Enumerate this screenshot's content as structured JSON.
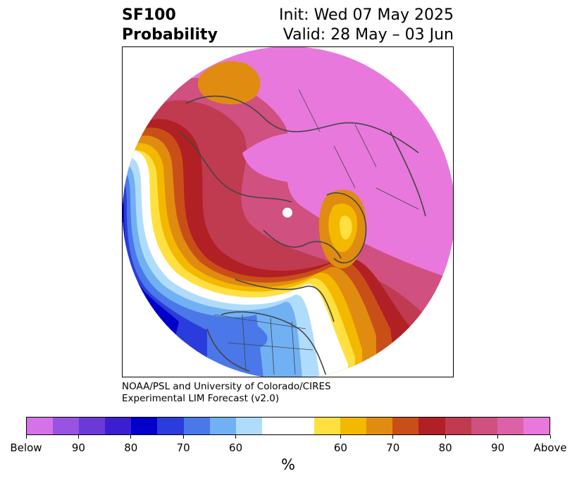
{
  "header": {
    "variable": "SF100",
    "quantity": "Probability",
    "init": "Init: Wed 07 May 2025",
    "valid": "Valid: 28 May – 03 Jun"
  },
  "credit": {
    "line1": "NOAA/PSL and University of Colorado/CIRES",
    "line2": "Experimental LIM Forecast (v2.0)"
  },
  "colorbar": {
    "colors": [
      "#d672e8",
      "#9a52e0",
      "#6a3ad8",
      "#3a1ed0",
      "#0000c8",
      "#2a3cdc",
      "#4a78e8",
      "#72b0f4",
      "#b0dcfc",
      "#ffffff",
      "#ffffff",
      "#ffe040",
      "#f4b800",
      "#e08c10",
      "#c85018",
      "#b02024",
      "#c03a50",
      "#d05080",
      "#dc62a8",
      "#e878dc"
    ],
    "tick_labels": [
      "Below",
      "90",
      "80",
      "70",
      "60",
      "60",
      "70",
      "80",
      "90",
      "Above"
    ],
    "unit": "%"
  },
  "map_colors": {
    "background": "#ffffff",
    "pink": "#e878dc",
    "rose": "#dc62a8",
    "raspberry": "#d05080",
    "crimson": "#c03a50",
    "red": "#b02024",
    "rust": "#c85018",
    "orange": "#e08c10",
    "amber": "#f4b800",
    "yellow": "#ffe040",
    "pale_blue": "#b0dcfc",
    "light_blue": "#72b0f4",
    "mid_blue": "#4a78e8",
    "blue": "#2a3cdc",
    "navy": "#0000c8",
    "coast": "#444444"
  }
}
